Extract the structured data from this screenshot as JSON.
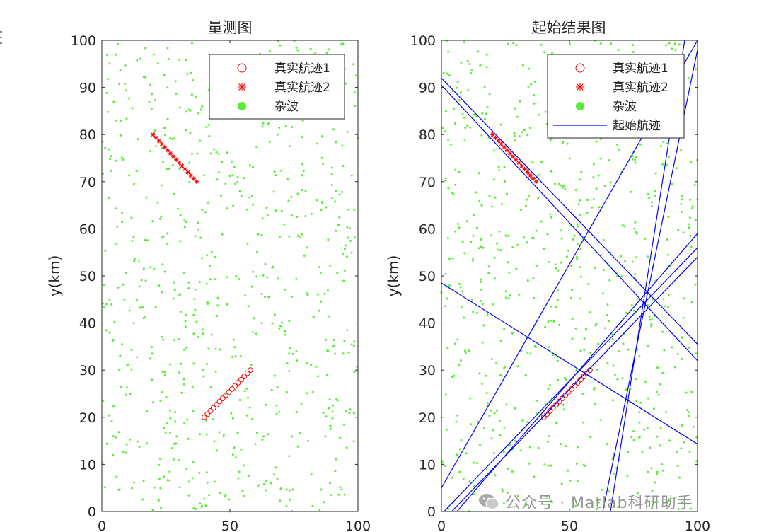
{
  "chart_data": [
    {
      "type": "scatter",
      "title": "量测图",
      "xlabel": "",
      "ylabel": "y(km)",
      "xlim": [
        0,
        100
      ],
      "ylim": [
        0,
        100
      ],
      "xticks": [
        "0",
        "50",
        "100"
      ],
      "yticks": [
        "0",
        "10",
        "20",
        "30",
        "40",
        "50",
        "60",
        "70",
        "80",
        "90",
        "100"
      ],
      "grid": false,
      "legend_position": "top-right",
      "legend": [
        "真实航迹1",
        "真实航迹2",
        "杂波"
      ],
      "series": [
        {
          "name": "真实航迹1",
          "marker": "circle",
          "color": "#ff0000",
          "x": [
            40,
            41.2,
            42.4,
            43.6,
            44.8,
            46,
            47.2,
            48.4,
            49.6,
            50.8,
            52,
            53.2,
            54.4,
            55.6,
            56.8,
            58
          ],
          "y": [
            20,
            20.67,
            21.33,
            22,
            22.67,
            23.33,
            24,
            24.67,
            25.33,
            26,
            26.67,
            27.33,
            28,
            28.67,
            29.33,
            30
          ]
        },
        {
          "name": "真实航迹2",
          "marker": "star",
          "color": "#ff0000",
          "x": [
            20,
            21.13,
            22.27,
            23.4,
            24.53,
            25.67,
            26.8,
            27.93,
            29.07,
            30.2,
            31.33,
            32.47,
            33.6,
            34.73,
            35.87,
            37
          ],
          "y": [
            80,
            79.33,
            78.67,
            78,
            77.33,
            76.67,
            76,
            75.33,
            74.67,
            74,
            73.33,
            72.67,
            72,
            71.33,
            70.67,
            70
          ]
        },
        {
          "name": "杂波",
          "marker": "dot",
          "color": "#55ee33",
          "count": 700,
          "distribution": "uniform"
        }
      ]
    },
    {
      "type": "line",
      "title": "起始结果图",
      "xlabel": "",
      "ylabel": "y(km)",
      "xlim": [
        0,
        100
      ],
      "ylim": [
        0,
        100
      ],
      "xticks": [
        "0",
        "50",
        "100"
      ],
      "yticks": [
        "0",
        "10",
        "20",
        "30",
        "40",
        "50",
        "60",
        "70",
        "80",
        "90",
        "100"
      ],
      "grid": false,
      "legend_position": "top-right",
      "legend": [
        "真实航迹1",
        "真实航迹2",
        "杂波",
        "起始航迹"
      ],
      "series": [
        {
          "name": "真实航迹1",
          "marker": "circle",
          "color": "#ff0000",
          "x": [
            40,
            41.2,
            42.4,
            43.6,
            44.8,
            46,
            47.2,
            48.4,
            49.6,
            50.8,
            52,
            53.2,
            54.4,
            55.6,
            56.8,
            58
          ],
          "y": [
            20,
            20.67,
            21.33,
            22,
            22.67,
            23.33,
            24,
            24.67,
            25.33,
            26,
            26.67,
            27.33,
            28,
            28.67,
            29.33,
            30
          ]
        },
        {
          "name": "真实航迹2",
          "marker": "star",
          "color": "#ff0000",
          "x": [
            20,
            21.13,
            22.27,
            23.4,
            24.53,
            25.67,
            26.8,
            27.93,
            29.07,
            30.2,
            31.33,
            32.47,
            33.6,
            34.73,
            35.87,
            37
          ],
          "y": [
            80,
            79.33,
            78.67,
            78,
            77.33,
            76.67,
            76,
            75.33,
            74.67,
            74,
            73.33,
            72.67,
            72,
            71.33,
            70.67,
            70
          ]
        },
        {
          "name": "杂波",
          "marker": "dot",
          "color": "#55ee33",
          "count": 700,
          "distribution": "uniform"
        },
        {
          "name": "起始航迹",
          "color": "#0000ff",
          "lines": [
            {
              "x1": 0,
              "y1": 92,
              "x2": 100,
              "y2": 35.5
            },
            {
              "x1": 0,
              "y1": 90.5,
              "x2": 100,
              "y2": 32
            },
            {
              "x1": 0,
              "y1": 48.5,
              "x2": 100,
              "y2": 14.3
            },
            {
              "x1": 0,
              "y1": 5,
              "x2": 100,
              "y2": 100
            },
            {
              "x1": 1,
              "y1": 0,
              "x2": 100,
              "y2": 56
            },
            {
              "x1": 4,
              "y1": 0,
              "x2": 100,
              "y2": 54
            },
            {
              "x1": 6,
              "y1": 0,
              "x2": 100,
              "y2": 59
            },
            {
              "x1": 63,
              "y1": 0,
              "x2": 100,
              "y2": 98
            },
            {
              "x1": 66,
              "y1": 0,
              "x2": 95,
              "y2": 100
            }
          ]
        }
      ]
    }
  ],
  "watermark": {
    "text": "公众号 · Matlab科研助手",
    "icon": "wechat-icon"
  }
}
